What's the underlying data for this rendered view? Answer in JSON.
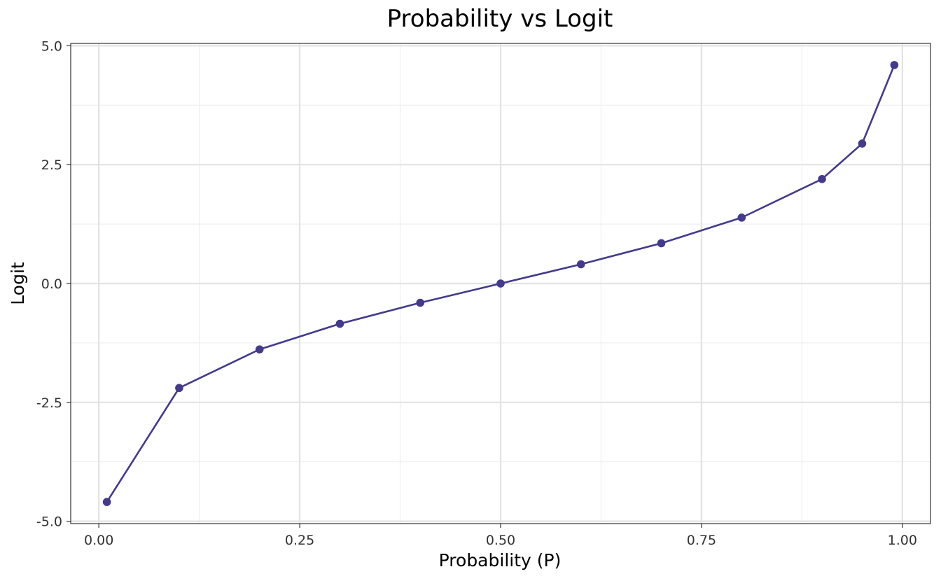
{
  "chart_data": {
    "type": "line",
    "title": "Probability vs Logit",
    "xlabel": "Probability (P)",
    "ylabel": "Logit",
    "x": [
      0.01,
      0.1,
      0.2,
      0.3,
      0.4,
      0.5,
      0.6,
      0.7,
      0.8,
      0.9,
      0.95,
      0.99
    ],
    "series": [
      {
        "values": [
          -4.595,
          -2.197,
          -1.386,
          -0.847,
          -0.405,
          0.0,
          0.405,
          0.847,
          1.386,
          2.197,
          2.944,
          4.595
        ],
        "color": "#443a8c",
        "markers": true
      }
    ],
    "xlim": [
      -0.035,
      1.035
    ],
    "ylim": [
      -5.05,
      5.05
    ],
    "xticks": [
      0.0,
      0.25,
      0.5,
      0.75,
      1.0
    ],
    "xtick_labels": [
      "0.00",
      "0.25",
      "0.50",
      "0.75",
      "1.00"
    ],
    "yticks": [
      -5.0,
      -2.5,
      0.0,
      2.5,
      5.0
    ],
    "ytick_labels": [
      "-5.0",
      "-2.5",
      "0.0",
      "2.5",
      "5.0"
    ],
    "grid": true,
    "legend": "none"
  }
}
